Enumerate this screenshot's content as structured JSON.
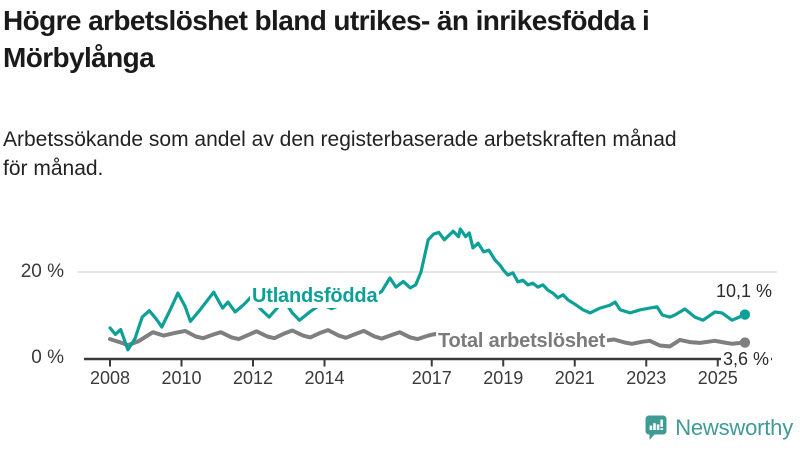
{
  "header": {
    "title": "Högre arbetslöshet bland utrikes- än inrikesfödda i\nMörbylånga",
    "subtitle": "Arbetssökande som andel av den registerbaserade arbetskraften månad\nför månad."
  },
  "chart_data": {
    "type": "line",
    "title": "Högre arbetslöshet bland utrikes- än inrikesfödda i Mörbylånga",
    "subtitle": "Arbetssökande som andel av den registerbaserade arbetskraften månad för månad.",
    "xlabel": "",
    "ylabel": "",
    "ylim": [
      0,
      33
    ],
    "xlim": [
      2008,
      2025.8
    ],
    "grid": "single horizontal gridline at 20 %",
    "legend_position": "inline-labels-on-lines",
    "y_tick_labels": [
      "20 %",
      "0 %"
    ],
    "y_tick_values": [
      20,
      0
    ],
    "x_tick_years": [
      2008,
      2010,
      2012,
      2014,
      2017,
      2019,
      2021,
      2023,
      2025
    ],
    "x_tick_labels": [
      "2008",
      "2010",
      "2012",
      "2014",
      "2017",
      "2019",
      "2021",
      "2023",
      "2025"
    ],
    "series": [
      {
        "name": "Utlandsfödda",
        "color": "#0da096",
        "end_label": "10,1 %",
        "end_value": 10.1,
        "points": [
          [
            2008.0,
            7.0
          ],
          [
            2008.15,
            5.5
          ],
          [
            2008.3,
            6.6
          ],
          [
            2008.5,
            1.9
          ],
          [
            2008.7,
            4.5
          ],
          [
            2008.9,
            9.5
          ],
          [
            2009.1,
            11.0
          ],
          [
            2009.3,
            9.0
          ],
          [
            2009.45,
            7.2
          ],
          [
            2009.7,
            11.5
          ],
          [
            2009.9,
            15.1
          ],
          [
            2010.1,
            12.0
          ],
          [
            2010.25,
            8.5
          ],
          [
            2010.5,
            11.0
          ],
          [
            2010.9,
            15.3
          ],
          [
            2011.15,
            11.6
          ],
          [
            2011.3,
            13.0
          ],
          [
            2011.5,
            10.7
          ],
          [
            2011.75,
            12.5
          ],
          [
            2011.95,
            14.2
          ],
          [
            2012.2,
            11.5
          ],
          [
            2012.45,
            9.5
          ],
          [
            2012.75,
            12.3
          ],
          [
            2012.9,
            13.0
          ],
          [
            2013.1,
            10.5
          ],
          [
            2013.3,
            8.8
          ],
          [
            2013.6,
            10.8
          ],
          [
            2013.9,
            12.5
          ],
          [
            2014.2,
            11.5
          ],
          [
            2014.5,
            12.5
          ],
          [
            2014.8,
            14.0
          ],
          [
            2015.1,
            15.0
          ],
          [
            2015.4,
            14.5
          ],
          [
            2015.6,
            15.5
          ],
          [
            2015.83,
            18.6
          ],
          [
            2016.0,
            16.5
          ],
          [
            2016.2,
            17.8
          ],
          [
            2016.4,
            16.3
          ],
          [
            2016.55,
            17.0
          ],
          [
            2016.7,
            20.0
          ],
          [
            2016.9,
            27.5
          ],
          [
            2017.05,
            28.8
          ],
          [
            2017.2,
            29.2
          ],
          [
            2017.35,
            27.5
          ],
          [
            2017.6,
            29.5
          ],
          [
            2017.75,
            28.2
          ],
          [
            2017.8,
            30.0
          ],
          [
            2017.95,
            28.2
          ],
          [
            2018.05,
            29.1
          ],
          [
            2018.15,
            25.6
          ],
          [
            2018.3,
            26.7
          ],
          [
            2018.45,
            24.7
          ],
          [
            2018.6,
            25.1
          ],
          [
            2018.77,
            22.8
          ],
          [
            2018.91,
            21.6
          ],
          [
            2019.0,
            20.5
          ],
          [
            2019.13,
            19.3
          ],
          [
            2019.27,
            19.8
          ],
          [
            2019.41,
            17.7
          ],
          [
            2019.55,
            18.1
          ],
          [
            2019.69,
            17.0
          ],
          [
            2019.83,
            17.4
          ],
          [
            2019.97,
            16.5
          ],
          [
            2020.11,
            17.0
          ],
          [
            2020.25,
            15.8
          ],
          [
            2020.39,
            15.1
          ],
          [
            2020.53,
            14.0
          ],
          [
            2020.67,
            14.7
          ],
          [
            2020.81,
            13.5
          ],
          [
            2021.01,
            12.5
          ],
          [
            2021.23,
            11.2
          ],
          [
            2021.43,
            10.5
          ],
          [
            2021.71,
            11.6
          ],
          [
            2021.99,
            12.3
          ],
          [
            2022.13,
            13.0
          ],
          [
            2022.27,
            11.2
          ],
          [
            2022.55,
            10.5
          ],
          [
            2022.83,
            11.2
          ],
          [
            2023.1,
            11.6
          ],
          [
            2023.3,
            11.9
          ],
          [
            2023.45,
            10.0
          ],
          [
            2023.66,
            9.5
          ],
          [
            2023.8,
            10.0
          ],
          [
            2024.08,
            11.4
          ],
          [
            2024.36,
            9.5
          ],
          [
            2024.59,
            8.8
          ],
          [
            2024.92,
            10.7
          ],
          [
            2025.12,
            10.5
          ],
          [
            2025.4,
            8.8
          ],
          [
            2025.76,
            10.1
          ]
        ]
      },
      {
        "name": "Total arbetslöshet",
        "color": "#7f7f7f",
        "end_label": "3,6 %",
        "end_value": 3.6,
        "points": [
          [
            2008.0,
            4.4
          ],
          [
            2008.3,
            3.6
          ],
          [
            2008.5,
            3.0
          ],
          [
            2008.8,
            3.9
          ],
          [
            2009.2,
            6.0
          ],
          [
            2009.5,
            5.2
          ],
          [
            2009.8,
            5.8
          ],
          [
            2010.1,
            6.3
          ],
          [
            2010.4,
            5.0
          ],
          [
            2010.6,
            4.6
          ],
          [
            2010.9,
            5.5
          ],
          [
            2011.1,
            6.0
          ],
          [
            2011.4,
            4.8
          ],
          [
            2011.6,
            4.4
          ],
          [
            2011.9,
            5.5
          ],
          [
            2012.1,
            6.2
          ],
          [
            2012.4,
            5.0
          ],
          [
            2012.6,
            4.6
          ],
          [
            2012.9,
            5.8
          ],
          [
            2013.1,
            6.4
          ],
          [
            2013.4,
            5.2
          ],
          [
            2013.6,
            4.8
          ],
          [
            2013.9,
            5.9
          ],
          [
            2014.1,
            6.5
          ],
          [
            2014.4,
            5.2
          ],
          [
            2014.6,
            4.7
          ],
          [
            2014.9,
            5.7
          ],
          [
            2015.1,
            6.3
          ],
          [
            2015.4,
            5.0
          ],
          [
            2015.6,
            4.5
          ],
          [
            2015.9,
            5.4
          ],
          [
            2016.1,
            6.0
          ],
          [
            2016.4,
            4.8
          ],
          [
            2016.6,
            4.4
          ],
          [
            2016.9,
            5.2
          ],
          [
            2017.1,
            5.6
          ],
          [
            2017.4,
            4.6
          ],
          [
            2017.6,
            4.2
          ],
          [
            2017.9,
            5.0
          ],
          [
            2018.1,
            5.4
          ],
          [
            2018.4,
            4.4
          ],
          [
            2018.6,
            4.0
          ],
          [
            2018.9,
            4.8
          ],
          [
            2019.1,
            5.2
          ],
          [
            2019.4,
            4.2
          ],
          [
            2019.6,
            3.9
          ],
          [
            2019.9,
            4.6
          ],
          [
            2020.2,
            5.6
          ],
          [
            2020.5,
            5.2
          ],
          [
            2020.8,
            4.9
          ],
          [
            2021.1,
            4.6
          ],
          [
            2021.4,
            4.0
          ],
          [
            2021.6,
            3.7
          ],
          [
            2021.9,
            4.1
          ],
          [
            2022.1,
            4.3
          ],
          [
            2022.4,
            3.6
          ],
          [
            2022.6,
            3.3
          ],
          [
            2022.9,
            3.8
          ],
          [
            2023.1,
            4.0
          ],
          [
            2023.38,
            2.9
          ],
          [
            2023.66,
            2.7
          ],
          [
            2023.94,
            4.2
          ],
          [
            2024.22,
            3.7
          ],
          [
            2024.5,
            3.5
          ],
          [
            2024.92,
            4.0
          ],
          [
            2025.12,
            3.7
          ],
          [
            2025.4,
            3.3
          ],
          [
            2025.76,
            3.6
          ]
        ]
      }
    ],
    "colors": {
      "foreign_line": "#0da096",
      "total_line": "#7f7f7f",
      "gridline": "#dcdcdc",
      "axis": "#3a3a3a",
      "brand_teal": "#3f9b95"
    }
  },
  "footer": {
    "brand": "Newsworthy"
  }
}
